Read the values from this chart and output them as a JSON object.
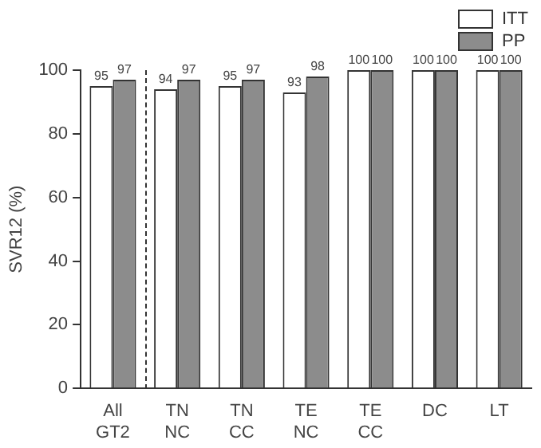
{
  "chart_data": {
    "type": "bar",
    "ylabel": "SVR12 (%)",
    "categories": [
      "All GT2",
      "TN NC",
      "TN CC",
      "TE NC",
      "TE CC",
      "DC",
      "LT"
    ],
    "series": [
      {
        "name": "ITT",
        "color": "#ffffff",
        "values": [
          95,
          94,
          95,
          93,
          100,
          100,
          100
        ]
      },
      {
        "name": "PP",
        "color": "#8c8c8c",
        "values": [
          97,
          97,
          97,
          98,
          100,
          100,
          100
        ]
      }
    ],
    "ylim": [
      0,
      100
    ],
    "yticks": [
      0,
      20,
      40,
      60,
      80,
      100
    ],
    "grid": false,
    "legend": "top right",
    "data_labels": true
  }
}
